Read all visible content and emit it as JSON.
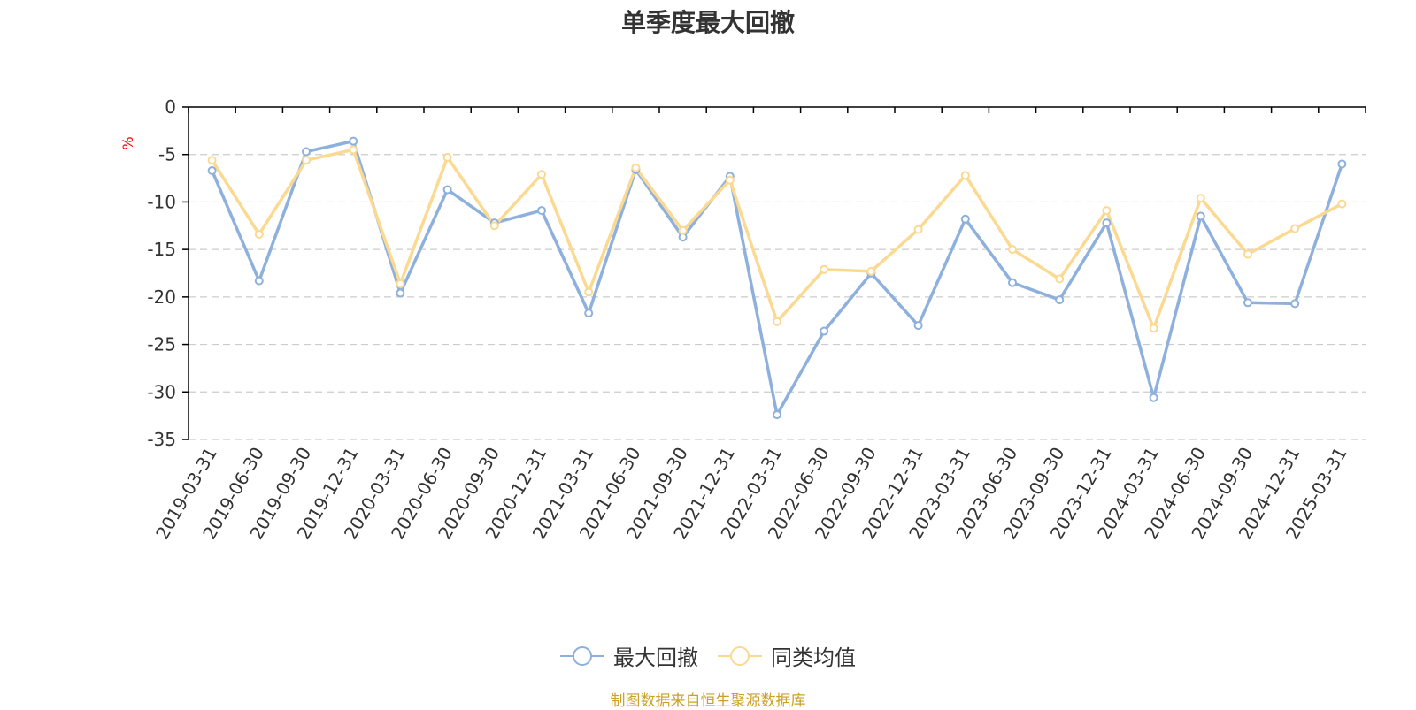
{
  "chart_data": {
    "type": "line",
    "title": "单季度最大回撤",
    "ylabel": "%",
    "ylim": [
      -35,
      0
    ],
    "yticks": [
      0,
      -5,
      -10,
      -15,
      -20,
      -25,
      -30,
      -35
    ],
    "grid": true,
    "legend_position": "bottom",
    "categories": [
      "2019-03-31",
      "2019-06-30",
      "2019-09-30",
      "2019-12-31",
      "2020-03-31",
      "2020-06-30",
      "2020-09-30",
      "2020-12-31",
      "2021-03-31",
      "2021-06-30",
      "2021-09-30",
      "2021-12-31",
      "2022-03-31",
      "2022-06-30",
      "2022-09-30",
      "2022-12-31",
      "2023-03-31",
      "2023-06-30",
      "2023-09-30",
      "2023-12-31",
      "2024-03-31",
      "2024-06-30",
      "2024-09-30",
      "2024-12-31",
      "2025-03-31"
    ],
    "series": [
      {
        "name": "最大回撤",
        "color": "#8eb0dc",
        "values": [
          -6.7,
          -18.3,
          -4.7,
          -3.6,
          -19.6,
          -8.7,
          -12.2,
          -10.9,
          -21.7,
          -6.6,
          -13.7,
          -7.3,
          -32.4,
          -23.6,
          -17.5,
          -23.0,
          -11.8,
          -18.5,
          -20.3,
          -12.2,
          -30.6,
          -11.5,
          -20.6,
          -20.7,
          -6.0
        ]
      },
      {
        "name": "同类均值",
        "color": "#fbd991",
        "values": [
          -5.6,
          -13.4,
          -5.6,
          -4.5,
          -18.6,
          -5.3,
          -12.5,
          -7.1,
          -19.5,
          -6.4,
          -13.0,
          -7.7,
          -22.6,
          -17.1,
          -17.3,
          -12.9,
          -7.2,
          -15.0,
          -18.1,
          -10.9,
          -23.3,
          -9.6,
          -15.5,
          -12.8,
          -10.2
        ]
      }
    ]
  },
  "source_text": "制图数据来自恒生聚源数据库",
  "colors": {
    "title": "#333333",
    "axis": "#000000",
    "grid": "#cccccc",
    "unit": "#ff0000",
    "source": "#c9a227"
  }
}
